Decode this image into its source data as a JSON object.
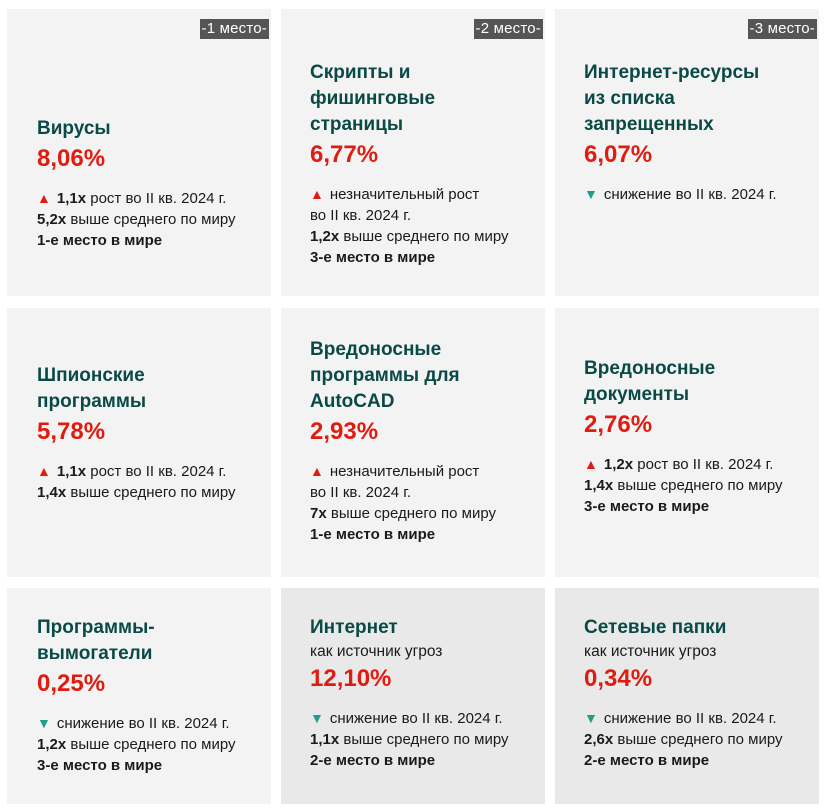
{
  "cards": [
    {
      "rank": "-1 место-",
      "title": [
        "Вирусы"
      ],
      "percent": "8,06%",
      "trend": "up",
      "trend_icon": "triangle-up",
      "trend_lines": [
        {
          "bold": "1,1x",
          "text": "рост во II кв. 2024 г."
        }
      ],
      "compare": {
        "bold": "5,2x",
        "text": "выше среднего по миру"
      },
      "world_rank": "1-е место в мире"
    },
    {
      "rank": "-2 место-",
      "title": [
        "Скрипты и",
        "фишинговые",
        "страницы"
      ],
      "percent": "6,77%",
      "trend": "up",
      "trend_lines": [
        {
          "bold": "",
          "text": "незначительный рост"
        },
        {
          "bold": "",
          "text": "во II кв. 2024 г."
        }
      ],
      "compare": {
        "bold": "1,2x",
        "text": "выше среднего по миру"
      },
      "world_rank": "3-е место в мире"
    },
    {
      "rank": "-3 место-",
      "title": [
        "Интернет-ресурсы",
        "из списка",
        "запрещенных"
      ],
      "percent": "6,07%",
      "trend": "down",
      "trend_lines": [
        {
          "bold": "",
          "text": "снижение во II кв. 2024 г."
        }
      ]
    },
    {
      "title": [
        "Шпионские",
        "программы"
      ],
      "percent": "5,78%",
      "trend": "up",
      "trend_lines": [
        {
          "bold": "1,1x",
          "text": "рост во II кв. 2024 г."
        }
      ],
      "compare": {
        "bold": "1,4x",
        "text": "выше среднего по миру"
      }
    },
    {
      "title": [
        "Вредоносные",
        "программы для",
        "AutoCAD"
      ],
      "percent": "2,93%",
      "trend": "up",
      "trend_lines": [
        {
          "bold": "",
          "text": "незначительный рост"
        },
        {
          "bold": "",
          "text": "во II кв. 2024 г."
        }
      ],
      "compare": {
        "bold": "7x",
        "text": "выше среднего по миру"
      },
      "world_rank": "1-е место в мире"
    },
    {
      "title": [
        "Вредоносные",
        "документы"
      ],
      "percent": "2,76%",
      "trend": "up",
      "trend_lines": [
        {
          "bold": "1,2x",
          "text": "рост во II кв. 2024 г."
        }
      ],
      "compare": {
        "bold": "1,4x",
        "text": "выше среднего по миру"
      },
      "world_rank": "3-е место в мире"
    },
    {
      "title": [
        "Программы-",
        "вымогатели"
      ],
      "percent": "0,25%",
      "trend": "down",
      "trend_lines": [
        {
          "bold": "",
          "text": "снижение во II кв. 2024 г."
        }
      ],
      "compare": {
        "bold": "1,2x",
        "text": "выше среднего по миру"
      },
      "world_rank": "3-е место в мире"
    },
    {
      "title": [
        "Интернет"
      ],
      "subtitle": "как источник угроз",
      "percent": "12,10%",
      "trend": "down",
      "trend_lines": [
        {
          "bold": "",
          "text": "снижение во II кв. 2024 г."
        }
      ],
      "compare": {
        "bold": "1,1x",
        "text": "выше среднего по миру"
      },
      "world_rank": "2-е место в мире"
    },
    {
      "title": [
        "Сетевые папки"
      ],
      "subtitle": "как источник угроз",
      "percent": "0,34%",
      "trend": "down",
      "trend_lines": [
        {
          "bold": "",
          "text": "снижение во II кв. 2024 г."
        }
      ],
      "compare": {
        "bold": "2,6x",
        "text": "выше среднего по миру"
      },
      "world_rank": "2-е место в мире"
    }
  ],
  "colors": {
    "title": "#0a4a46",
    "percent": "#e01b10",
    "up_arrow": "#e01b10",
    "down_arrow": "#1f9e8a",
    "card_bg": "#f3f3f3",
    "card_bg_dark": "#e9e9e9",
    "rank_badge": "#555555"
  }
}
